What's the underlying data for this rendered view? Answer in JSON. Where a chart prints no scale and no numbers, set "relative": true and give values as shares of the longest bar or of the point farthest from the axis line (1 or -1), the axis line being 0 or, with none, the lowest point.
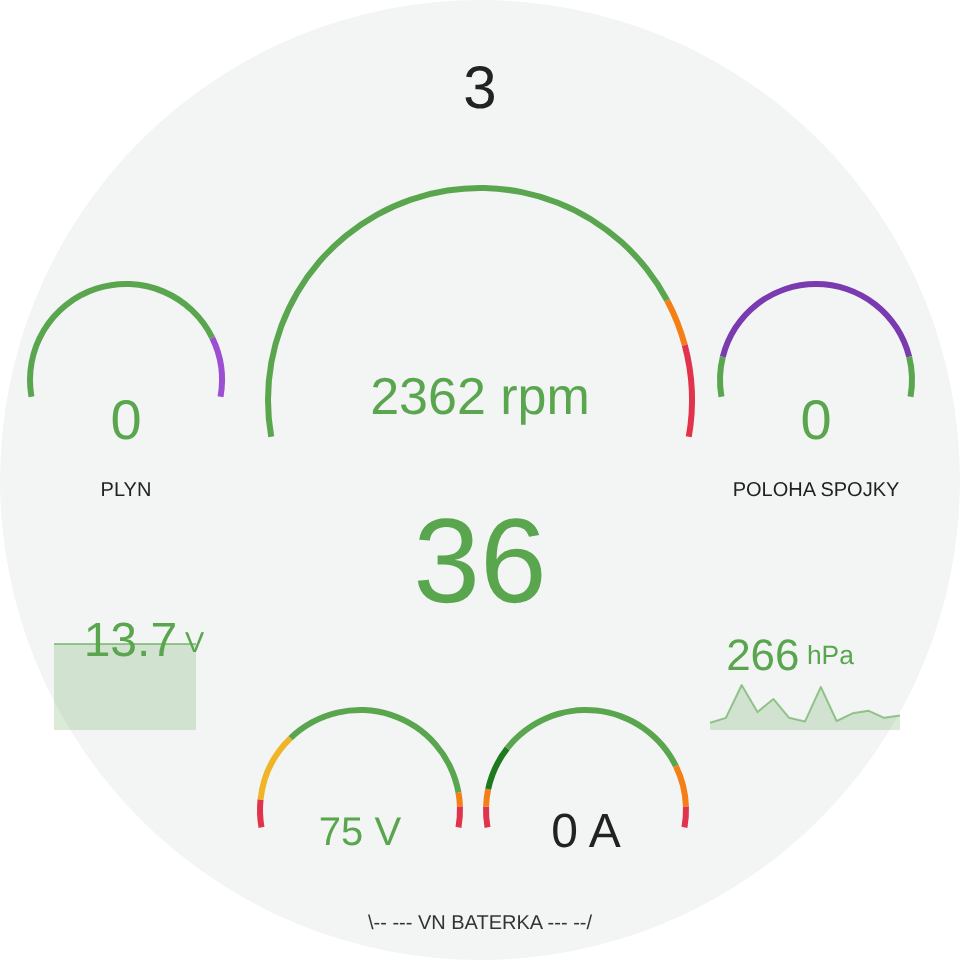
{
  "chart_data": [
    {
      "type": "other",
      "title": "3",
      "annotations": [
        "36"
      ]
    },
    {
      "type": "donut",
      "categories": [
        null,
        null,
        null
      ],
      "values": [
        81,
        6.5,
        12.5
      ],
      "colors": [
        "#5aa64f",
        "#f57f17",
        "#e2334c"
      ],
      "annotations": [
        "2362 rpm"
      ]
    },
    {
      "type": "donut",
      "categories": [
        null,
        null
      ],
      "values": [
        82,
        18
      ],
      "colors": [
        "#5aa64f",
        "#9c4fd0"
      ],
      "annotations": [
        "0"
      ],
      "xlabel": "PLYN"
    },
    {
      "type": "donut",
      "categories": [
        null,
        null,
        null
      ],
      "values": [
        12,
        76,
        12
      ],
      "colors": [
        "#5aa64f",
        "#7b3bb0",
        "#5aa64f"
      ],
      "annotations": [
        "0"
      ],
      "xlabel": "POLOHA SPOJKY"
    },
    {
      "type": "other",
      "color": "#5aa64f",
      "annotations": [
        "13.7",
        "V"
      ]
    },
    {
      "type": "area",
      "relative": true,
      "categories": [
        null,
        null,
        null,
        null,
        null,
        null,
        null,
        null,
        null,
        null,
        null,
        null,
        null
      ],
      "values": [
        0.16,
        0.27,
        1,
        0.4,
        0.69,
        0.27,
        0.19,
        0.96,
        0.2,
        0.37,
        0.43,
        0.27,
        0.32
      ],
      "color": "#5aa64f",
      "annotations": [
        "266",
        "hPa"
      ]
    },
    {
      "type": "donut",
      "categories": [
        null,
        null,
        null,
        null,
        null
      ],
      "values": [
        8,
        20,
        62,
        4,
        6
      ],
      "colors": [
        "#e2334c",
        "#f0b429",
        "#5aa64f",
        "#f57f17",
        "#e2334c"
      ],
      "annotations": [
        "75 V"
      ]
    },
    {
      "type": "donut",
      "categories": [
        null,
        null,
        null,
        null,
        null,
        null
      ],
      "values": [
        6,
        5,
        13,
        58,
        12,
        6
      ],
      "colors": [
        "#e2334c",
        "#f57f17",
        "#1f7a1f",
        "#5aa64f",
        "#f57f17",
        "#e2334c"
      ],
      "annotations": [
        "0 A"
      ]
    },
    {
      "type": "other",
      "title": "\\-- --- VN BATERKA --- --/"
    }
  ]
}
